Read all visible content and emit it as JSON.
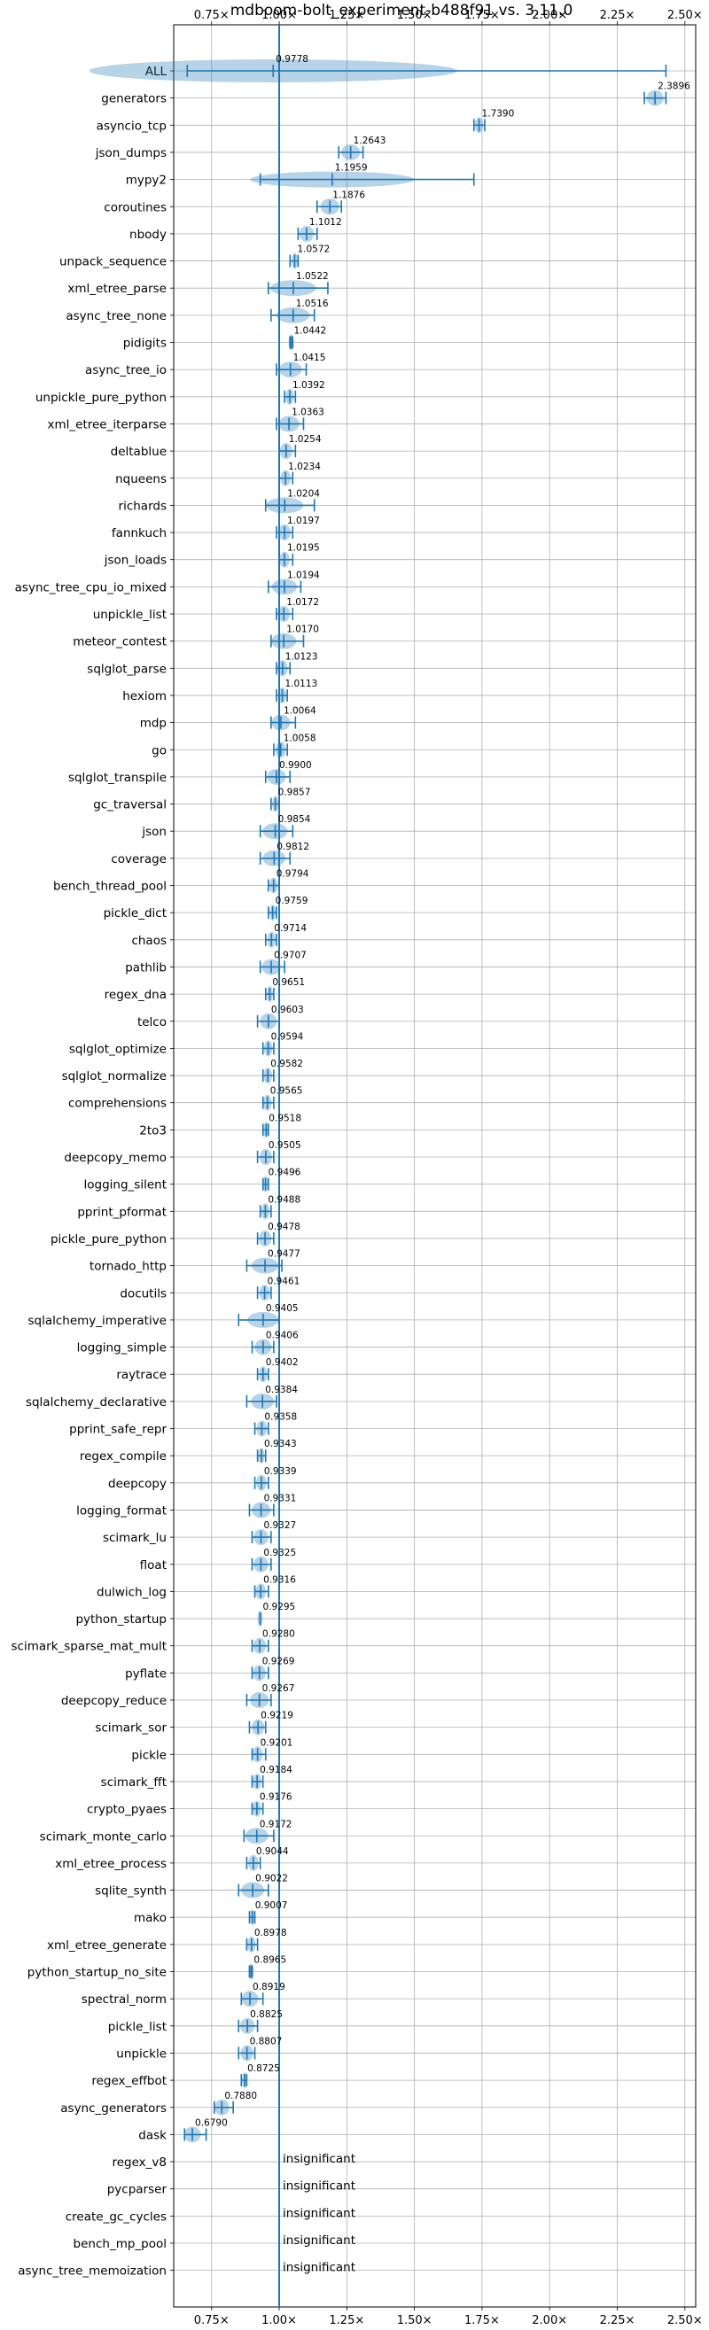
{
  "chart_data": {
    "type": "violin",
    "title": "mdboom-bolt_experiment-b488f91 vs. 3.11.0",
    "xlabel": "",
    "ylabel": "",
    "xlim": [
      0.61,
      2.54
    ],
    "x_ticks": [
      0.75,
      1.0,
      1.25,
      1.5,
      1.75,
      2.0,
      2.25,
      2.5
    ],
    "x_tick_labels": [
      "0.75×",
      "1.00×",
      "1.25×",
      "1.50×",
      "1.75×",
      "2.00×",
      "2.25×",
      "2.50×"
    ],
    "reference_line": 1.0,
    "grid": true,
    "color": "#1f77b4",
    "benchmarks": [
      {
        "name": "ALL",
        "value": 0.9778,
        "label": "0.9778",
        "min": 0.66,
        "max": 2.43
      },
      {
        "name": "generators",
        "value": 2.3896,
        "label": "2.3896",
        "min": 2.35,
        "max": 2.43
      },
      {
        "name": "asyncio_tcp",
        "value": 1.739,
        "label": "1.7390",
        "min": 1.72,
        "max": 1.76
      },
      {
        "name": "json_dumps",
        "value": 1.2643,
        "label": "1.2643",
        "min": 1.22,
        "max": 1.31
      },
      {
        "name": "mypy2",
        "value": 1.1959,
        "label": "1.1959",
        "min": 0.93,
        "max": 1.72
      },
      {
        "name": "coroutines",
        "value": 1.1876,
        "label": "1.1876",
        "min": 1.14,
        "max": 1.23
      },
      {
        "name": "nbody",
        "value": 1.1012,
        "label": "1.1012",
        "min": 1.07,
        "max": 1.14
      },
      {
        "name": "unpack_sequence",
        "value": 1.0572,
        "label": "1.0572",
        "min": 1.04,
        "max": 1.07
      },
      {
        "name": "xml_etree_parse",
        "value": 1.0522,
        "label": "1.0522",
        "min": 0.96,
        "max": 1.18
      },
      {
        "name": "async_tree_none",
        "value": 1.0516,
        "label": "1.0516",
        "min": 0.97,
        "max": 1.13
      },
      {
        "name": "pidigits",
        "value": 1.0442,
        "label": "1.0442",
        "min": 1.04,
        "max": 1.05
      },
      {
        "name": "async_tree_io",
        "value": 1.0415,
        "label": "1.0415",
        "min": 0.99,
        "max": 1.1
      },
      {
        "name": "unpickle_pure_python",
        "value": 1.0392,
        "label": "1.0392",
        "min": 1.02,
        "max": 1.06
      },
      {
        "name": "xml_etree_iterparse",
        "value": 1.0363,
        "label": "1.0363",
        "min": 0.99,
        "max": 1.09
      },
      {
        "name": "deltablue",
        "value": 1.0254,
        "label": "1.0254",
        "min": 1.0,
        "max": 1.06
      },
      {
        "name": "nqueens",
        "value": 1.0234,
        "label": "1.0234",
        "min": 1.0,
        "max": 1.05
      },
      {
        "name": "richards",
        "value": 1.0204,
        "label": "1.0204",
        "min": 0.95,
        "max": 1.13
      },
      {
        "name": "fannkuch",
        "value": 1.0197,
        "label": "1.0197",
        "min": 0.99,
        "max": 1.05
      },
      {
        "name": "json_loads",
        "value": 1.0195,
        "label": "1.0195",
        "min": 1.0,
        "max": 1.05
      },
      {
        "name": "async_tree_cpu_io_mixed",
        "value": 1.0194,
        "label": "1.0194",
        "min": 0.96,
        "max": 1.08
      },
      {
        "name": "unpickle_list",
        "value": 1.0172,
        "label": "1.0172",
        "min": 0.99,
        "max": 1.05
      },
      {
        "name": "meteor_contest",
        "value": 1.017,
        "label": "1.0170",
        "min": 0.97,
        "max": 1.09
      },
      {
        "name": "sqlglot_parse",
        "value": 1.0123,
        "label": "1.0123",
        "min": 0.99,
        "max": 1.04
      },
      {
        "name": "hexiom",
        "value": 1.0113,
        "label": "1.0113",
        "min": 0.99,
        "max": 1.03
      },
      {
        "name": "mdp",
        "value": 1.0064,
        "label": "1.0064",
        "min": 0.97,
        "max": 1.06
      },
      {
        "name": "go",
        "value": 1.0058,
        "label": "1.0058",
        "min": 0.98,
        "max": 1.03
      },
      {
        "name": "sqlglot_transpile",
        "value": 0.99,
        "label": "0.9900",
        "min": 0.95,
        "max": 1.04
      },
      {
        "name": "gc_traversal",
        "value": 0.9857,
        "label": "0.9857",
        "min": 0.97,
        "max": 1.0
      },
      {
        "name": "json",
        "value": 0.9854,
        "label": "0.9854",
        "min": 0.93,
        "max": 1.05
      },
      {
        "name": "coverage",
        "value": 0.9812,
        "label": "0.9812",
        "min": 0.93,
        "max": 1.04
      },
      {
        "name": "bench_thread_pool",
        "value": 0.9794,
        "label": "0.9794",
        "min": 0.96,
        "max": 1.0
      },
      {
        "name": "pickle_dict",
        "value": 0.9759,
        "label": "0.9759",
        "min": 0.96,
        "max": 0.99
      },
      {
        "name": "chaos",
        "value": 0.9714,
        "label": "0.9714",
        "min": 0.95,
        "max": 0.99
      },
      {
        "name": "pathlib",
        "value": 0.9707,
        "label": "0.9707",
        "min": 0.93,
        "max": 1.02
      },
      {
        "name": "regex_dna",
        "value": 0.9651,
        "label": "0.9651",
        "min": 0.95,
        "max": 0.98
      },
      {
        "name": "telco",
        "value": 0.9603,
        "label": "0.9603",
        "min": 0.92,
        "max": 1.0
      },
      {
        "name": "sqlglot_optimize",
        "value": 0.9594,
        "label": "0.9594",
        "min": 0.94,
        "max": 0.98
      },
      {
        "name": "sqlglot_normalize",
        "value": 0.9582,
        "label": "0.9582",
        "min": 0.94,
        "max": 0.98
      },
      {
        "name": "comprehensions",
        "value": 0.9565,
        "label": "0.9565",
        "min": 0.94,
        "max": 0.98
      },
      {
        "name": "2to3",
        "value": 0.9518,
        "label": "0.9518",
        "min": 0.94,
        "max": 0.96
      },
      {
        "name": "deepcopy_memo",
        "value": 0.9505,
        "label": "0.9505",
        "min": 0.92,
        "max": 0.98
      },
      {
        "name": "logging_silent",
        "value": 0.9496,
        "label": "0.9496",
        "min": 0.94,
        "max": 0.96
      },
      {
        "name": "pprint_pformat",
        "value": 0.9488,
        "label": "0.9488",
        "min": 0.93,
        "max": 0.97
      },
      {
        "name": "pickle_pure_python",
        "value": 0.9478,
        "label": "0.9478",
        "min": 0.92,
        "max": 0.98
      },
      {
        "name": "tornado_http",
        "value": 0.9477,
        "label": "0.9477",
        "min": 0.88,
        "max": 1.01
      },
      {
        "name": "docutils",
        "value": 0.9461,
        "label": "0.9461",
        "min": 0.92,
        "max": 0.97
      },
      {
        "name": "sqlalchemy_imperative",
        "value": 0.9405,
        "label": "0.9405",
        "min": 0.85,
        "max": 1.0
      },
      {
        "name": "logging_simple",
        "value": 0.9406,
        "label": "0.9406",
        "min": 0.9,
        "max": 0.98
      },
      {
        "name": "raytrace",
        "value": 0.9402,
        "label": "0.9402",
        "min": 0.92,
        "max": 0.96
      },
      {
        "name": "sqlalchemy_declarative",
        "value": 0.9384,
        "label": "0.9384",
        "min": 0.88,
        "max": 0.99
      },
      {
        "name": "pprint_safe_repr",
        "value": 0.9358,
        "label": "0.9358",
        "min": 0.91,
        "max": 0.96
      },
      {
        "name": "regex_compile",
        "value": 0.9343,
        "label": "0.9343",
        "min": 0.92,
        "max": 0.95
      },
      {
        "name": "deepcopy",
        "value": 0.9339,
        "label": "0.9339",
        "min": 0.91,
        "max": 0.96
      },
      {
        "name": "logging_format",
        "value": 0.9331,
        "label": "0.9331",
        "min": 0.89,
        "max": 0.98
      },
      {
        "name": "scimark_lu",
        "value": 0.9327,
        "label": "0.9327",
        "min": 0.9,
        "max": 0.97
      },
      {
        "name": "float",
        "value": 0.9325,
        "label": "0.9325",
        "min": 0.9,
        "max": 0.97
      },
      {
        "name": "dulwich_log",
        "value": 0.9316,
        "label": "0.9316",
        "min": 0.91,
        "max": 0.96
      },
      {
        "name": "python_startup",
        "value": 0.9295,
        "label": "0.9295",
        "min": 0.93,
        "max": 0.93
      },
      {
        "name": "scimark_sparse_mat_mult",
        "value": 0.928,
        "label": "0.9280",
        "min": 0.9,
        "max": 0.96
      },
      {
        "name": "pyflate",
        "value": 0.9269,
        "label": "0.9269",
        "min": 0.9,
        "max": 0.96
      },
      {
        "name": "deepcopy_reduce",
        "value": 0.9267,
        "label": "0.9267",
        "min": 0.88,
        "max": 0.97
      },
      {
        "name": "scimark_sor",
        "value": 0.9219,
        "label": "0.9219",
        "min": 0.89,
        "max": 0.95
      },
      {
        "name": "pickle",
        "value": 0.9201,
        "label": "0.9201",
        "min": 0.9,
        "max": 0.95
      },
      {
        "name": "scimark_fft",
        "value": 0.9184,
        "label": "0.9184",
        "min": 0.9,
        "max": 0.94
      },
      {
        "name": "crypto_pyaes",
        "value": 0.9176,
        "label": "0.9176",
        "min": 0.9,
        "max": 0.94
      },
      {
        "name": "scimark_monte_carlo",
        "value": 0.9172,
        "label": "0.9172",
        "min": 0.87,
        "max": 0.98
      },
      {
        "name": "xml_etree_process",
        "value": 0.9044,
        "label": "0.9044",
        "min": 0.88,
        "max": 0.93
      },
      {
        "name": "sqlite_synth",
        "value": 0.9022,
        "label": "0.9022",
        "min": 0.85,
        "max": 0.96
      },
      {
        "name": "mako",
        "value": 0.9007,
        "label": "0.9007",
        "min": 0.89,
        "max": 0.91
      },
      {
        "name": "xml_etree_generate",
        "value": 0.8978,
        "label": "0.8978",
        "min": 0.88,
        "max": 0.92
      },
      {
        "name": "python_startup_no_site",
        "value": 0.8965,
        "label": "0.8965",
        "min": 0.89,
        "max": 0.9
      },
      {
        "name": "spectral_norm",
        "value": 0.8919,
        "label": "0.8919",
        "min": 0.86,
        "max": 0.94
      },
      {
        "name": "pickle_list",
        "value": 0.8825,
        "label": "0.8825",
        "min": 0.85,
        "max": 0.92
      },
      {
        "name": "unpickle",
        "value": 0.8807,
        "label": "0.8807",
        "min": 0.85,
        "max": 0.91
      },
      {
        "name": "regex_effbot",
        "value": 0.8725,
        "label": "0.8725",
        "min": 0.86,
        "max": 0.88
      },
      {
        "name": "async_generators",
        "value": 0.788,
        "label": "0.7880",
        "min": 0.76,
        "max": 0.83
      },
      {
        "name": "dask",
        "value": 0.679,
        "label": "0.6790",
        "min": 0.65,
        "max": 0.73
      },
      {
        "name": "regex_v8",
        "value": null,
        "label": "insignificant"
      },
      {
        "name": "pycparser",
        "value": null,
        "label": "insignificant"
      },
      {
        "name": "create_gc_cycles",
        "value": null,
        "label": "insignificant"
      },
      {
        "name": "bench_mp_pool",
        "value": null,
        "label": "insignificant"
      },
      {
        "name": "async_tree_memoization",
        "value": null,
        "label": "insignificant"
      }
    ]
  }
}
